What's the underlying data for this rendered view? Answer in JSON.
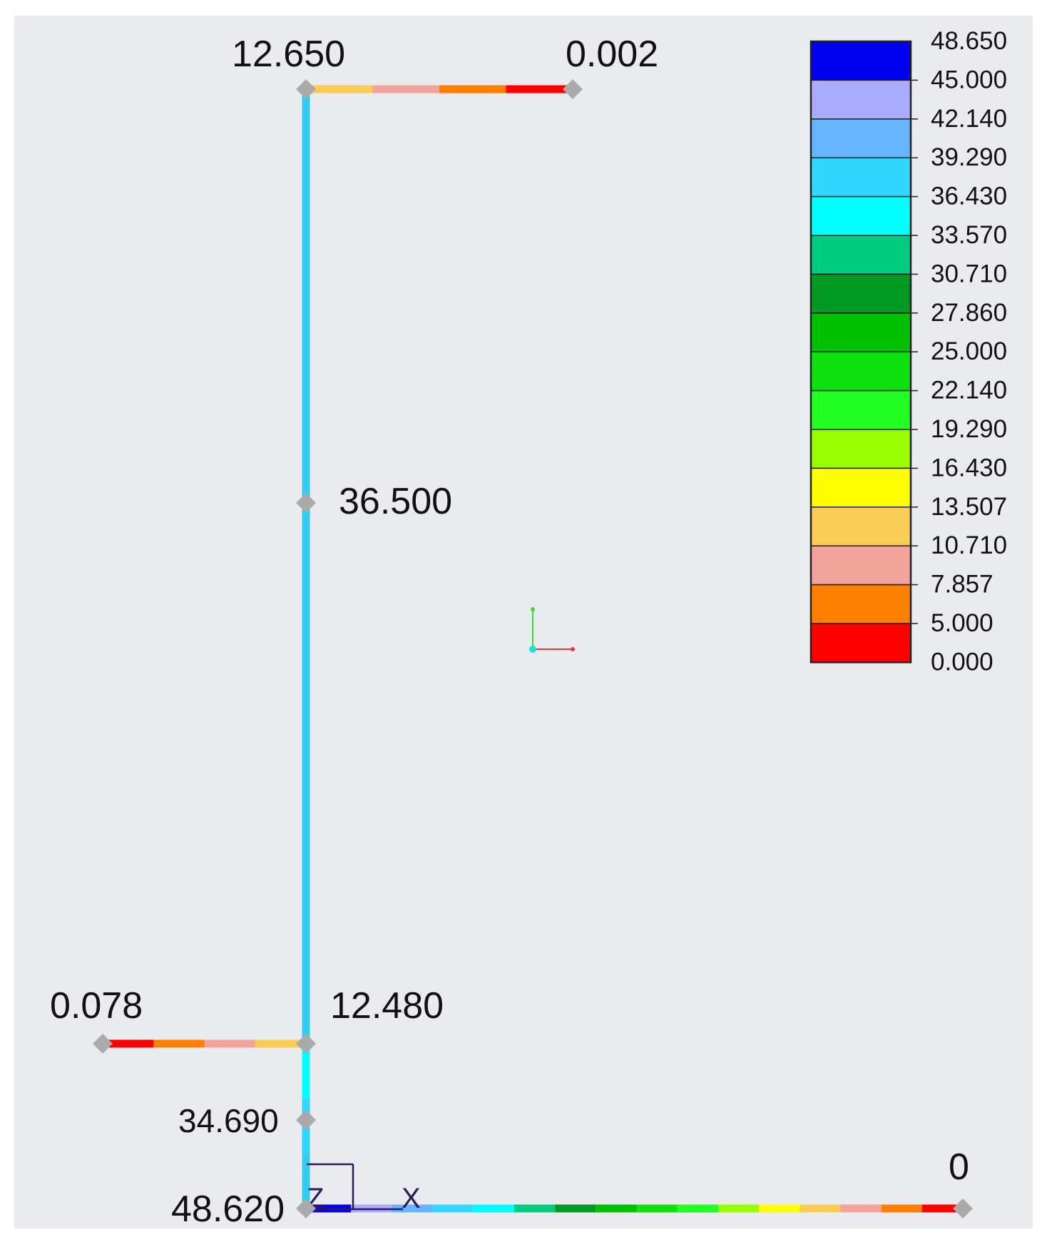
{
  "colors": {
    "background": "#e9ebef",
    "node_marker": "#aaaaaa",
    "member_column": "#33ccf0"
  },
  "legend": {
    "bands": [
      {
        "color": "#0000ee"
      },
      {
        "color": "#aaaaff"
      },
      {
        "color": "#66b3ff"
      },
      {
        "color": "#33d6ff"
      },
      {
        "color": "#00ffff"
      },
      {
        "color": "#00cc80"
      },
      {
        "color": "#009922"
      },
      {
        "color": "#00c000"
      },
      {
        "color": "#10e010"
      },
      {
        "color": "#22ff22"
      },
      {
        "color": "#99ff00"
      },
      {
        "color": "#ffff00"
      },
      {
        "color": "#f8cc55"
      },
      {
        "color": "#f2a39c"
      },
      {
        "color": "#ff8000"
      },
      {
        "color": "#ff0000"
      }
    ],
    "labels": [
      "48.650",
      "45.000",
      "42.140",
      "39.290",
      "36.430",
      "33.570",
      "30.710",
      "27.860",
      "25.000",
      "22.140",
      "19.290",
      "16.430",
      "13.507",
      "10.710",
      "7.857",
      "5.000",
      "0.000"
    ]
  },
  "node_labels": {
    "top_column": "12.650",
    "top_beam_end": "0.002",
    "column_mid": "36.500",
    "left_beam_end": "0.078",
    "column_joint": "12.480",
    "column_lower": "34.690",
    "base": "48.620",
    "bottom_beam_end": "0"
  },
  "axis_labels": {
    "z": "Z",
    "x": "X"
  },
  "members": {
    "top_beam_colors": [
      "#f8cc55",
      "#f2a39c",
      "#ff8000",
      "#ff0000"
    ],
    "left_beam_colors": [
      "#ff0000",
      "#ff8000",
      "#f2a39c",
      "#f8cc55"
    ],
    "lower_column_colors": [
      "#00ffff",
      "#33d6ff",
      "#33ccf0"
    ],
    "bottom_beam_colors": [
      "#0000ee",
      "#aaaaff",
      "#66b3ff",
      "#33d6ff",
      "#00ffff",
      "#00cc80",
      "#009922",
      "#00c000",
      "#10e010",
      "#22ff22",
      "#99ff00",
      "#ffff00",
      "#f8cc55",
      "#f2a39c",
      "#ff8000",
      "#ff0000"
    ]
  }
}
